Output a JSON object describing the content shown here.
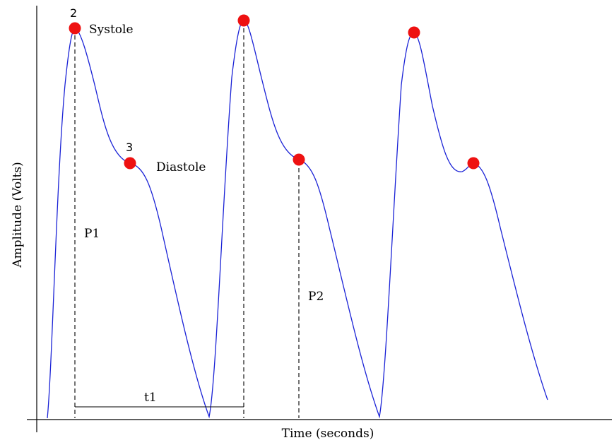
{
  "axes": {
    "x_title": "Time (seconds)",
    "y_title": "Amplitude (Volts)"
  },
  "labels": {
    "systole": "Systole",
    "diastole": "Diastole",
    "point_2": "2",
    "point_3": "3",
    "p1": "P1",
    "p2": "P2",
    "t1": "t1"
  },
  "colors": {
    "waveform": "#1a22d6",
    "marker": "#ee1111",
    "axis": "#000000"
  }
}
